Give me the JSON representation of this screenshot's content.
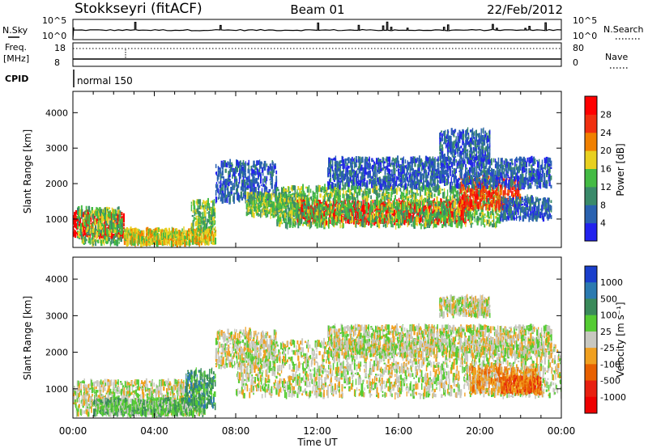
{
  "header": {
    "station": "Stokkseyri (fitACF)",
    "beam": "Beam 01",
    "date": "22/Feb/2012"
  },
  "top_panels": {
    "nsky_label": "N.Sky",
    "nsky_ticks": [
      "10^5",
      "10^0"
    ],
    "nsearch_label": "N.Search",
    "nsearch_ticks": [
      "10^5",
      "10^0"
    ],
    "freq_label": "Freq.",
    "freq_unit": "[MHz]",
    "freq_ticks": [
      "18",
      "8"
    ],
    "nave_label": "Nave",
    "nave_ticks": [
      "80",
      "0"
    ],
    "cpid_label": "CPID",
    "cpid_value": "normal 150"
  },
  "chart_data": [
    {
      "type": "heatmap",
      "name": "power",
      "ylabel": "Slant Range [km]",
      "yticks": [
        "1000",
        "2000",
        "3000",
        "4000"
      ],
      "ylim": [
        200,
        4600
      ],
      "colorbar_label": "Power [dB]",
      "colorbar_ticks": [
        "4",
        "8",
        "12",
        "16",
        "20",
        "24",
        "28"
      ],
      "colors": [
        "#2222ee",
        "#2a62b0",
        "#3a8a6a",
        "#44bb44",
        "#e8d020",
        "#f08000",
        "#f03010",
        "#ff0000"
      ],
      "blobs": [
        {
          "h0": 0.0,
          "h1": 2.5,
          "r0": 500,
          "r1": 1200,
          "level": 7
        },
        {
          "h0": 0.2,
          "h1": 2.4,
          "r0": 300,
          "r1": 1300,
          "level": 3
        },
        {
          "h0": 2.5,
          "h1": 7.0,
          "r0": 300,
          "r1": 700,
          "level": 4
        },
        {
          "h0": 5.8,
          "h1": 7.0,
          "r0": 700,
          "r1": 1500,
          "level": 3
        },
        {
          "h0": 7.0,
          "h1": 10.0,
          "r0": 1500,
          "r1": 2600,
          "level": 1
        },
        {
          "h0": 8.5,
          "h1": 11.5,
          "r0": 1100,
          "r1": 1700,
          "level": 3
        },
        {
          "h0": 11.0,
          "h1": 19.5,
          "r0": 900,
          "r1": 1500,
          "level": 7
        },
        {
          "h0": 10.0,
          "h1": 21.0,
          "r0": 800,
          "r1": 1900,
          "level": 3
        },
        {
          "h0": 19.0,
          "h1": 22.0,
          "r0": 1300,
          "r1": 2200,
          "level": 6
        },
        {
          "h0": 12.5,
          "h1": 23.5,
          "r0": 1900,
          "r1": 2700,
          "level": 1
        },
        {
          "h0": 18.0,
          "h1": 20.5,
          "r0": 2700,
          "r1": 3500,
          "level": 1
        },
        {
          "h0": 21.0,
          "h1": 23.5,
          "r0": 1000,
          "r1": 1600,
          "level": 1
        }
      ]
    },
    {
      "type": "heatmap",
      "name": "velocity",
      "xlabel": "Time UT",
      "xticks": [
        "00:00",
        "04:00",
        "08:00",
        "12:00",
        "16:00",
        "20:00",
        "00:00"
      ],
      "xlim": [
        0,
        24
      ],
      "ylabel": "Slant Range [km]",
      "yticks": [
        "1000",
        "2000",
        "3000",
        "4000"
      ],
      "ylim": [
        200,
        4600
      ],
      "colorbar_label": "Velocity [m s⁻¹]",
      "colorbar_ticks": [
        "1000",
        "500",
        "100",
        "25",
        "-25",
        "-100",
        "-500",
        "-1000"
      ],
      "colors": [
        "#1a3fcc",
        "#2b7ab0",
        "#3a8a5a",
        "#55cc33",
        "#c8c8c0",
        "#f0a020",
        "#e86000",
        "#e82010",
        "#ee0000"
      ],
      "blobs": [
        {
          "h0": 0.0,
          "h1": 6.5,
          "r0": 300,
          "r1": 1200,
          "level": 4
        },
        {
          "h0": 1.0,
          "h1": 6.5,
          "r0": 300,
          "r1": 700,
          "level": 3
        },
        {
          "h0": 5.5,
          "h1": 7.0,
          "r0": 500,
          "r1": 1500,
          "level": 2
        },
        {
          "h0": 7.0,
          "h1": 10.0,
          "r0": 1600,
          "r1": 2600,
          "level": 4
        },
        {
          "h0": 8.0,
          "h1": 24.0,
          "r0": 800,
          "r1": 2300,
          "level": 4
        },
        {
          "h0": 12.5,
          "h1": 23.5,
          "r0": 1900,
          "r1": 2700,
          "level": 4
        },
        {
          "h0": 18.0,
          "h1": 20.5,
          "r0": 3000,
          "r1": 3500,
          "level": 4
        },
        {
          "h0": 19.5,
          "h1": 23.0,
          "r0": 900,
          "r1": 1600,
          "level": 5
        },
        {
          "h0": 21.0,
          "h1": 23.0,
          "r0": 900,
          "r1": 1300,
          "level": 6
        }
      ]
    }
  ]
}
